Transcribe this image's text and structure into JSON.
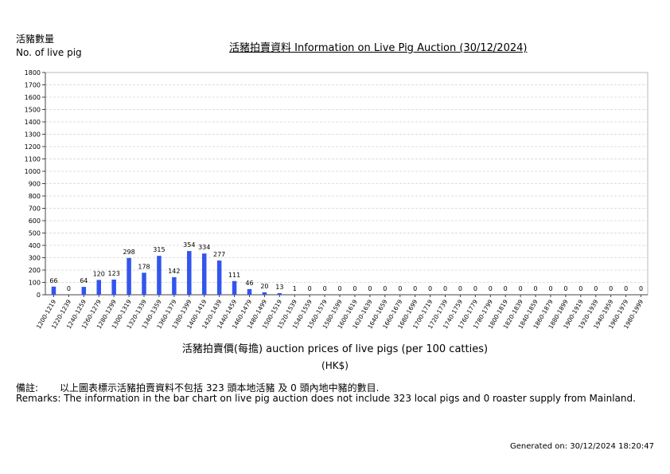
{
  "header": {
    "ylabel_zh": "活豬數量",
    "ylabel_en": "No. of live pig",
    "title": "活豬拍賣資料 Information on Live Pig Auction (30/12/2024)"
  },
  "axis": {
    "xlabel": "活豬拍賣價(每擔) auction prices of live pigs (per 100 catties)",
    "unit": "(HK$)"
  },
  "remarks": {
    "label_zh": "備註:",
    "text_zh": "以上圖表標示活豬拍賣資料不包括 323 頭本地活豬 及 0 頭內地中豬的數目.",
    "text_en": "Remarks: The information in the bar chart on live pig auction does not include 323 local pigs and 0 roaster supply from Mainland."
  },
  "footer": {
    "generated": "Generated on: 30/12/2024 18:20:47"
  },
  "chart_data": {
    "type": "bar",
    "title": "活豬拍賣資料 Information on Live Pig Auction (30/12/2024)",
    "xlabel": "活豬拍賣價(每擔) auction prices of live pigs (per 100 catties)",
    "ylabel": "活豬數量 No. of live pig",
    "ylim": [
      0,
      1800
    ],
    "yticks": [
      0,
      100,
      200,
      300,
      400,
      500,
      600,
      700,
      800,
      900,
      1000,
      1100,
      1200,
      1300,
      1400,
      1500,
      1600,
      1700,
      1800
    ],
    "grid": true,
    "bar_color": "#3355ee",
    "categories": [
      "1200-1219",
      "1220-1239",
      "1240-1259",
      "1260-1279",
      "1280-1299",
      "1300-1319",
      "1320-1339",
      "1340-1359",
      "1360-1379",
      "1380-1399",
      "1400-1419",
      "1420-1439",
      "1440-1459",
      "1460-1479",
      "1480-1499",
      "1500-1519",
      "1520-1539",
      "1540-1559",
      "1560-1579",
      "1580-1599",
      "1600-1619",
      "1620-1639",
      "1640-1659",
      "1660-1679",
      "1680-1699",
      "1700-1719",
      "1720-1739",
      "1740-1759",
      "1760-1779",
      "1780-1799",
      "1800-1819",
      "1820-1839",
      "1840-1859",
      "1860-1879",
      "1880-1899",
      "1900-1919",
      "1920-1939",
      "1940-1959",
      "1960-1979",
      "1980-1999"
    ],
    "values": [
      66,
      0,
      64,
      120,
      123,
      298,
      178,
      315,
      142,
      354,
      334,
      277,
      111,
      46,
      20,
      13,
      1,
      0,
      0,
      0,
      0,
      0,
      0,
      0,
      0,
      0,
      0,
      0,
      0,
      0,
      0,
      0,
      0,
      0,
      0,
      0,
      0,
      0,
      0,
      0
    ]
  }
}
